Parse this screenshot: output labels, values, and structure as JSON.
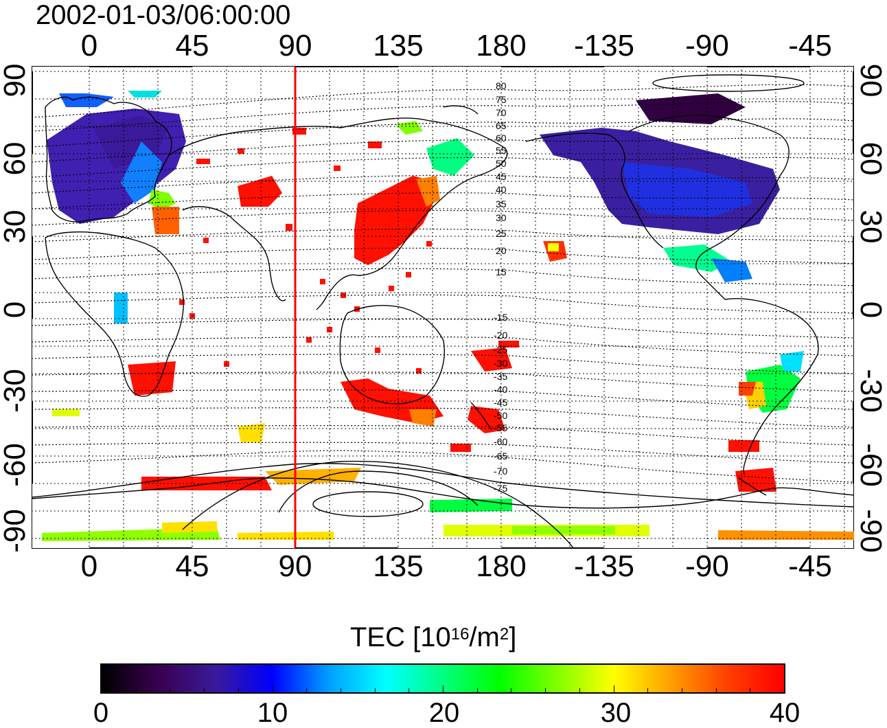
{
  "title": "2002-01-03/06:00:00",
  "axes": {
    "lon_ticks": [
      "0",
      "45",
      "90",
      "135",
      "180",
      "-135",
      "-90",
      "-45"
    ],
    "lat_ticks": [
      "90",
      "60",
      "30",
      "0",
      "-30",
      "-60",
      "-90"
    ]
  },
  "contour_labels": {
    "north": [
      "80",
      "75",
      "70",
      "65",
      "60",
      "55",
      "50",
      "45",
      "40",
      "35",
      "30",
      "25",
      "20",
      "15"
    ],
    "south": [
      "-15",
      "-20",
      "-25",
      "-30",
      "-35",
      "-40",
      "-45",
      "-50",
      "-55",
      "-60",
      "-65",
      "-70",
      "-75"
    ]
  },
  "marker_longitude_deg": 90,
  "colorbar": {
    "label_prefix": "TEC  [10",
    "label_exp1": "16",
    "label_mid": "/m",
    "label_exp2": "2",
    "label_suffix": "]",
    "ticks": [
      "0",
      "10",
      "20",
      "30",
      "40"
    ],
    "min": 0,
    "max": 40,
    "colors": [
      "#000000",
      "#3a0050",
      "#3a1a9a",
      "#0000ff",
      "#00a0ff",
      "#00ffff",
      "#00ff80",
      "#00ff00",
      "#80ff00",
      "#ffff00",
      "#ffa000",
      "#ff4000",
      "#ff0000"
    ]
  },
  "colors": {
    "marker_line": "#ff0000",
    "coast": "#000000",
    "grid": "#000000"
  }
}
